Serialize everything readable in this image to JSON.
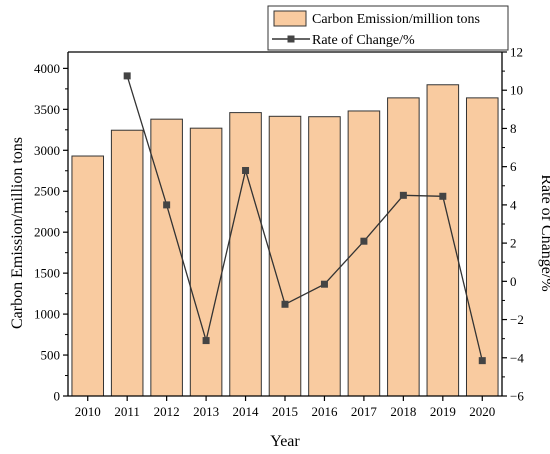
{
  "chart_data": {
    "type": "bar",
    "xlabel": "Year",
    "ylabel": "Carbon Emission/million tons",
    "y2label": "Rate of Change/%",
    "categories": [
      "2010",
      "2011",
      "2012",
      "2013",
      "2014",
      "2015",
      "2016",
      "2017",
      "2018",
      "2019",
      "2020"
    ],
    "series": [
      {
        "name": "Carbon Emission/million tons",
        "type": "bar",
        "axis": "left",
        "values": [
          2930,
          3245,
          3380,
          3270,
          3460,
          3415,
          3410,
          3480,
          3640,
          3800,
          3640
        ]
      },
      {
        "name": "Rate of Change/%",
        "type": "line",
        "axis": "right",
        "values": [
          null,
          10.75,
          4.0,
          -3.1,
          5.8,
          -1.2,
          -0.15,
          2.1,
          4.5,
          4.45,
          -4.15
        ]
      }
    ],
    "ylim": [
      0,
      4200
    ],
    "y2lim": [
      -6,
      12
    ],
    "yticks": [
      "0",
      "500",
      "1000",
      "1500",
      "2000",
      "2500",
      "3000",
      "3500",
      "4000"
    ],
    "y2ticks": [
      "−6",
      "−4",
      "−2",
      "0",
      "2",
      "4",
      "6",
      "8",
      "10",
      "12"
    ],
    "legend_position": "top-right",
    "grid": false,
    "colors": {
      "bar_fill": "#f9cba0",
      "bar_stroke": "#333333",
      "line": "#333333",
      "marker": "#444444",
      "axis": "#000000"
    }
  }
}
